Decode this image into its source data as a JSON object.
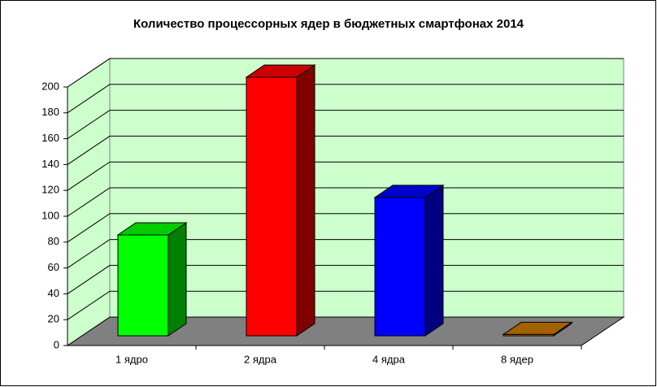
{
  "chart_data": {
    "type": "bar3d",
    "title": "Количество процессорных ядер в бюджетных смартфонах 2014",
    "categories": [
      "1 ядро",
      "2 ядра",
      "4 ядра",
      "8 ядер"
    ],
    "values": [
      78,
      200,
      107,
      1
    ],
    "colors": [
      "#00ff00",
      "#ff0000",
      "#0000ff",
      "#cc7a00"
    ],
    "ylim": [
      0,
      200
    ],
    "yticks": [
      0,
      20,
      40,
      60,
      80,
      100,
      120,
      140,
      160,
      180,
      200
    ],
    "grid": true
  }
}
